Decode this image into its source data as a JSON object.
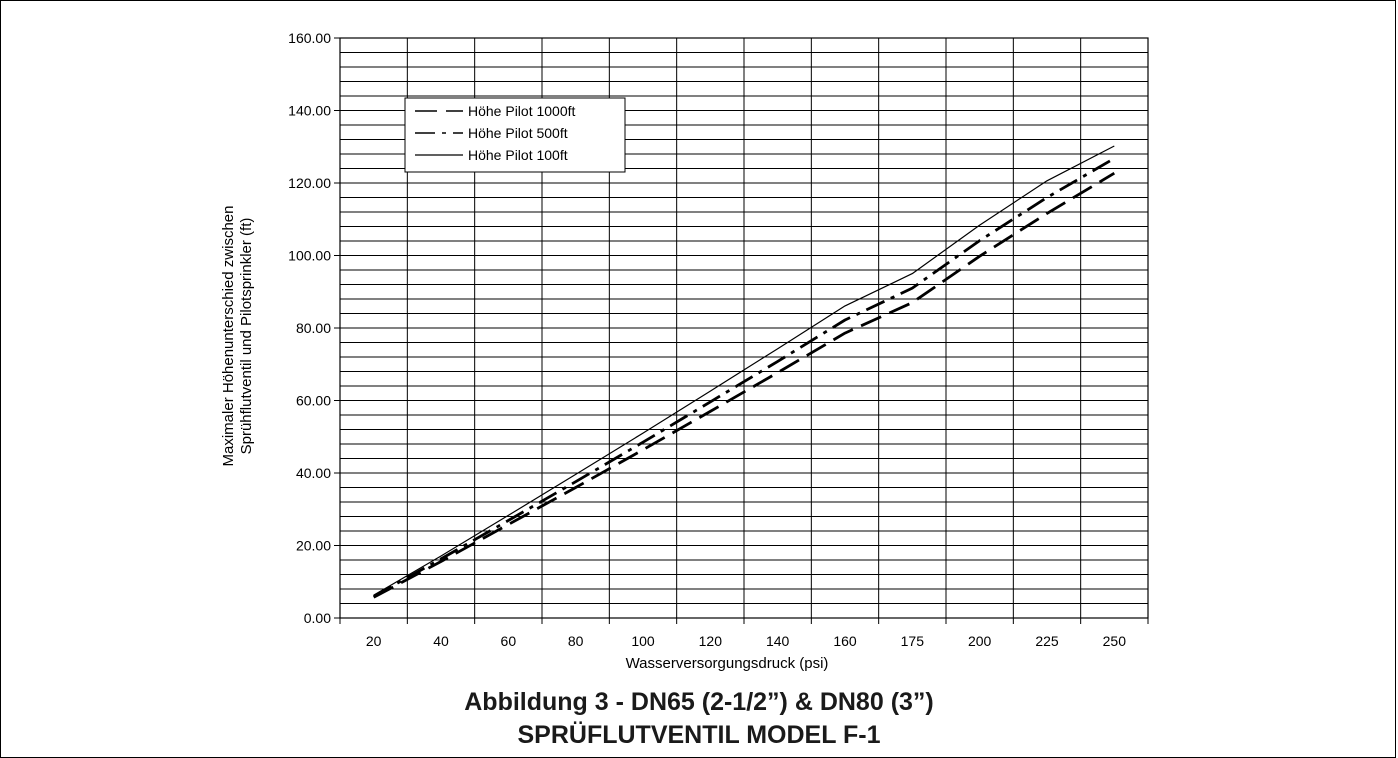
{
  "chart_data": {
    "type": "line",
    "x": [
      20,
      40,
      60,
      80,
      100,
      120,
      140,
      160,
      175,
      200,
      225,
      250
    ],
    "x_tick_labels": [
      "20",
      "40",
      "60",
      "80",
      "100",
      "120",
      "140",
      "160",
      "175",
      "200",
      "225",
      "250"
    ],
    "y_tick_labels": [
      "0.00",
      "20.00",
      "40.00",
      "60.00",
      "80.00",
      "100.00",
      "120.00",
      "140.00",
      "160.00"
    ],
    "ylim": [
      0,
      160
    ],
    "xlabel": "Wasserversorgungsdruck (psi)",
    "ylabel_lines": [
      "Maximaler Höhenunterschied zwischen",
      "Sprühflutventil und Pilotsprinkler (ft)"
    ],
    "grid": true,
    "legend_position": "top-left",
    "series": [
      {
        "name": "Höhe Pilot 1000ft",
        "style": "long-dash",
        "values": [
          5.7,
          15.6,
          25.8,
          36.0,
          46.4,
          57.0,
          67.7,
          78.6,
          87.0,
          99.8,
          111.6,
          122.7
        ]
      },
      {
        "name": "Höhe Pilot 500ft",
        "style": "dash-dot",
        "values": [
          6.0,
          16.3,
          26.9,
          37.6,
          48.5,
          59.6,
          70.8,
          82.2,
          91.0,
          104.1,
          116.0,
          126.8
        ]
      },
      {
        "name": "Höhe Pilot 100ft",
        "style": "solid",
        "values": [
          6.3,
          17.1,
          28.3,
          39.6,
          51.0,
          62.6,
          74.3,
          86.1,
          95.0,
          108.4,
          120.6,
          130.2
        ]
      }
    ]
  },
  "caption": {
    "line1": "Abbildung 3 - DN65 (2-1/2”) & DN80 (3”)",
    "line2": "SPRÜFLUTVENTIL MODEL F-1"
  }
}
